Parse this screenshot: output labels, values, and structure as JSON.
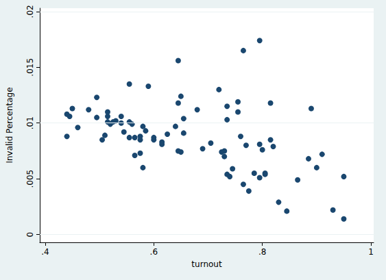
{
  "chart_data": {
    "type": "scatter",
    "x_label": "turnout",
    "y_label": "Invalid Percentage",
    "color": "#1a476f",
    "marker": "circle",
    "grid": true,
    "xlim": [
      0.39,
      1.005
    ],
    "ylim": [
      -0.0007,
      0.0203
    ],
    "xticks": [
      {
        "value": 0.4,
        "label": ".4"
      },
      {
        "value": 0.6,
        "label": ".6"
      },
      {
        "value": 0.8,
        "label": ".8"
      },
      1
    ],
    "yticks": [
      0,
      {
        "value": 0.005,
        "label": ".005"
      },
      {
        "value": 0.01,
        "label": ".01"
      },
      {
        "value": 0.015,
        "label": ".015"
      },
      {
        "value": 0.02,
        "label": ".02"
      }
    ],
    "x": [
      0.44,
      0.445,
      0.44,
      0.45,
      0.46,
      0.48,
      0.495,
      0.495,
      0.505,
      0.51,
      0.515,
      0.515,
      0.515,
      0.52,
      0.525,
      0.53,
      0.54,
      0.54,
      0.545,
      0.555,
      0.555,
      0.555,
      0.56,
      0.565,
      0.565,
      0.575,
      0.575,
      0.575,
      0.58,
      0.58,
      0.585,
      0.59,
      0.6,
      0.6,
      0.615,
      0.615,
      0.625,
      0.64,
      0.645,
      0.645,
      0.645,
      0.65,
      0.65,
      0.655,
      0.655,
      0.68,
      0.69,
      0.705,
      0.72,
      0.725,
      0.73,
      0.73,
      0.735,
      0.735,
      0.735,
      0.74,
      0.745,
      0.755,
      0.755,
      0.76,
      0.765,
      0.765,
      0.77,
      0.775,
      0.785,
      0.795,
      0.795,
      0.795,
      0.8,
      0.805,
      0.805,
      0.815,
      0.815,
      0.82,
      0.83,
      0.845,
      0.865,
      0.885,
      0.89,
      0.9,
      0.91,
      0.93,
      0.95,
      0.95
    ],
    "values": [
      0.0108,
      0.0106,
      0.0088,
      0.0113,
      0.0096,
      0.0112,
      0.0123,
      0.0105,
      0.0085,
      0.0089,
      0.011,
      0.0106,
      0.0101,
      0.0099,
      0.0101,
      0.0102,
      0.0106,
      0.01,
      0.0092,
      0.0135,
      0.0101,
      0.0087,
      0.0099,
      0.0087,
      0.0071,
      0.0088,
      0.0073,
      0.0085,
      0.0097,
      0.006,
      0.0093,
      0.0133,
      0.0085,
      0.0087,
      0.0081,
      0.0083,
      0.009,
      0.0097,
      0.0118,
      0.0075,
      0.0156,
      0.0124,
      0.0074,
      0.0104,
      0.0091,
      0.0112,
      0.0077,
      0.0082,
      0.013,
      0.0074,
      0.007,
      0.0075,
      0.0115,
      0.0103,
      0.0054,
      0.0052,
      0.0059,
      0.0119,
      0.011,
      0.0088,
      0.0165,
      0.0045,
      0.008,
      0.0039,
      0.0055,
      0.0174,
      0.0081,
      0.0051,
      0.0076,
      0.0055,
      0.0054,
      0.0118,
      0.0085,
      0.0079,
      0.0029,
      0.0021,
      0.0049,
      0.0068,
      0.0113,
      0.006,
      0.0072,
      0.0022,
      0.0052,
      0.0014
    ]
  }
}
